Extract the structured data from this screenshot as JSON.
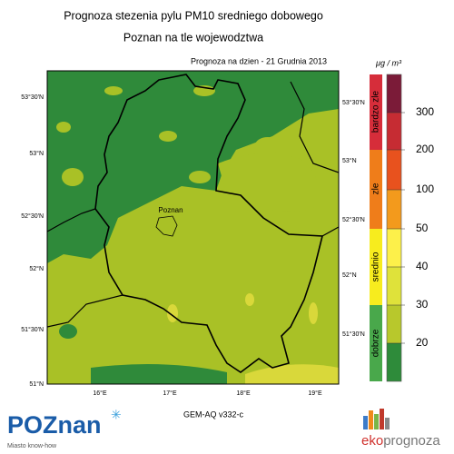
{
  "header": {
    "title": "Prognoza stezenia pylu PM10 sredniego dobowego",
    "subtitle": "Poznan na tle wojewodztwa",
    "date": "Prognoza na dzien -  21 Grudnia 2013",
    "unit": "μg / m³"
  },
  "map": {
    "lat_left": [
      "53°30'N",
      "53°N",
      "52°30'N",
      "52°N",
      "51°30'N",
      "51°N"
    ],
    "lat_right": [
      "53°30'N",
      "53°N",
      "52°30'N",
      "52°N",
      "51°30'N"
    ],
    "lon": [
      "16°E",
      "17°E",
      "18°E",
      "19°E"
    ],
    "city": "Poznan",
    "model": "GEM-AQ v332-c"
  },
  "legend": {
    "ticks": [
      300,
      200,
      100,
      50,
      40,
      30,
      20
    ],
    "categories": [
      "bardzo zle",
      "zle",
      "srednio",
      "dobrze"
    ]
  },
  "footer": {
    "left_logo": "POZnan",
    "left_tagline": "Miasto know-how",
    "right_logo_a": "eko",
    "right_logo_b": "prognoza"
  }
}
